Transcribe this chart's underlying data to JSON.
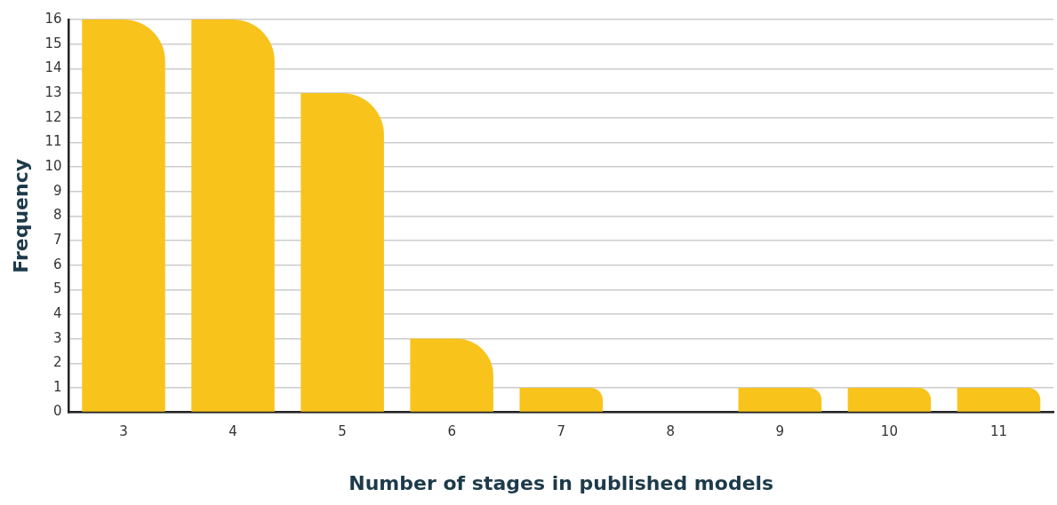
{
  "chart_data": {
    "type": "bar",
    "xlabel": "Number of stages in published models",
    "ylabel": "Frequency",
    "categories": [
      "3",
      "4",
      "5",
      "6",
      "7",
      "8",
      "9",
      "10",
      "11"
    ],
    "values": [
      16,
      16,
      13,
      3,
      1,
      0,
      1,
      1,
      1
    ],
    "color": "#f8c31b",
    "ylim": [
      0,
      16
    ],
    "yticks": [
      0,
      1,
      2,
      3,
      4,
      5,
      6,
      7,
      8,
      9,
      10,
      11,
      12,
      13,
      14,
      15,
      16
    ],
    "grid": "y",
    "legend": false
  }
}
